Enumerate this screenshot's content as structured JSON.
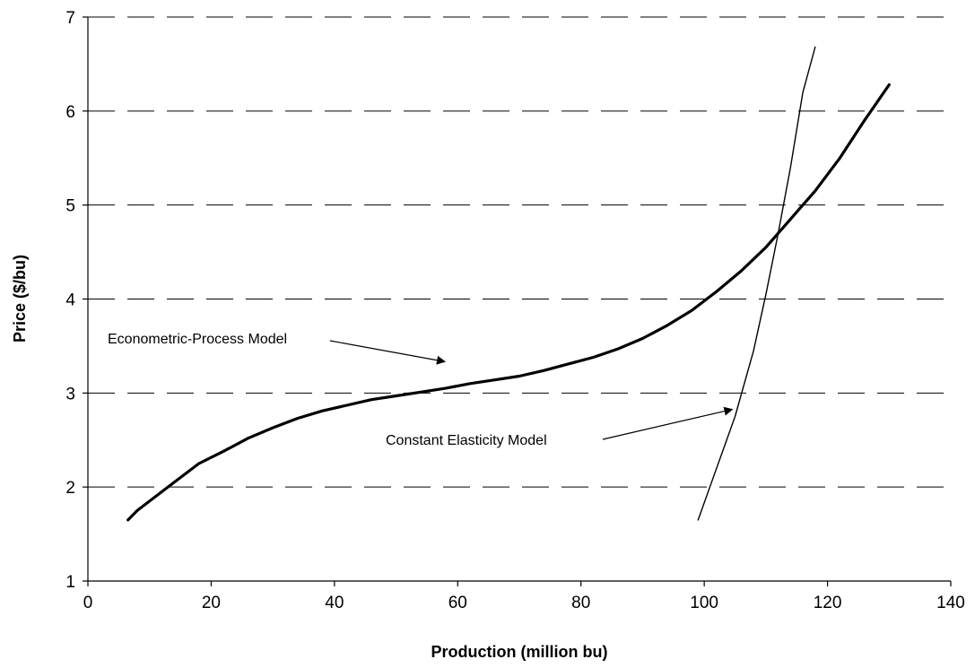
{
  "chart_data": {
    "type": "line",
    "title": "",
    "xlabel": "Production (million bu)",
    "ylabel": "Price ($/bu)",
    "xlim": [
      0,
      140
    ],
    "ylim": [
      1,
      7
    ],
    "x_ticks": [
      0,
      20,
      40,
      60,
      80,
      100,
      120,
      140
    ],
    "y_ticks": [
      1,
      2,
      3,
      4,
      5,
      6,
      7
    ],
    "grid": "horizontal dashed",
    "legend": "none",
    "series": [
      {
        "name": "Econometric-Process Model",
        "line_weight": "bold",
        "x": [
          6.5,
          8,
          10,
          14,
          18,
          22,
          26,
          30,
          34,
          38,
          42,
          46,
          50,
          54,
          58,
          62,
          66,
          70,
          74,
          78,
          82,
          86,
          90,
          94,
          98,
          100,
          102,
          106,
          110,
          114,
          118,
          122,
          126,
          130
        ],
        "y": [
          1.65,
          1.75,
          1.85,
          2.05,
          2.25,
          2.38,
          2.52,
          2.63,
          2.73,
          2.81,
          2.87,
          2.93,
          2.97,
          3.01,
          3.05,
          3.1,
          3.14,
          3.18,
          3.24,
          3.31,
          3.38,
          3.47,
          3.58,
          3.72,
          3.88,
          3.98,
          4.08,
          4.3,
          4.55,
          4.85,
          5.15,
          5.5,
          5.9,
          6.28
        ]
      },
      {
        "name": "Constant Elasticity Model",
        "line_weight": "thin",
        "x": [
          99,
          102,
          105,
          108,
          110,
          112,
          114,
          116,
          118
        ],
        "y": [
          1.65,
          2.2,
          2.75,
          3.45,
          4.05,
          4.7,
          5.4,
          6.2,
          6.68
        ]
      }
    ],
    "annotations": [
      {
        "text": "Econometric-Process Model",
        "points_to_series": "Econometric-Process Model"
      },
      {
        "text": "Constant Elasticity Model",
        "points_to_series": "Constant Elasticity Model"
      }
    ]
  }
}
